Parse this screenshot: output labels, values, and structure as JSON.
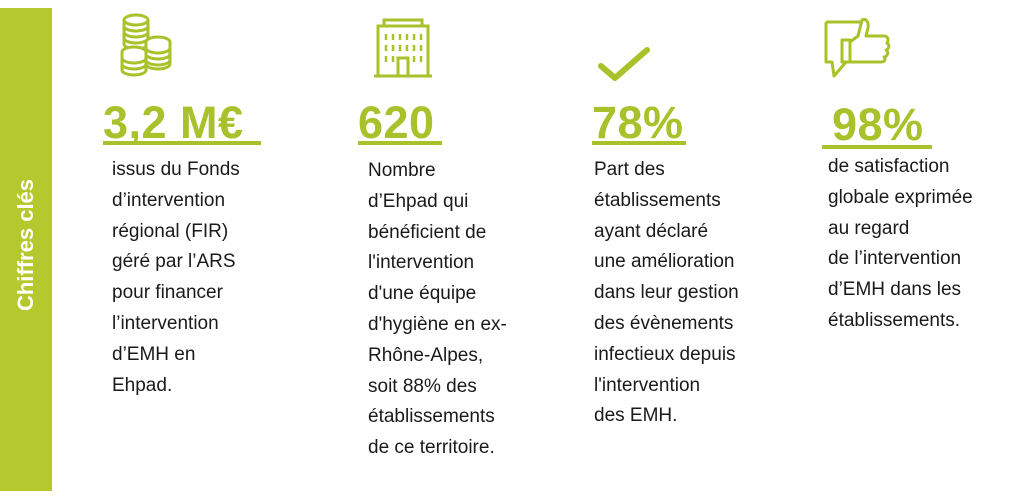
{
  "side_label": "Chiffres clés",
  "colors": {
    "accent": "#b5c92f",
    "figure": "#a9c12a",
    "text": "#1a1a1a"
  },
  "stats": [
    {
      "icon": "coins-icon",
      "value": "3,2 M€",
      "lines": [
        "issus du Fonds",
        "d’intervention",
        "régional (FIR)",
        "géré par l’ARS",
        "pour financer",
        "l’intervention",
        "d’EMH en",
        "Ehpad."
      ]
    },
    {
      "icon": "building-icon",
      "value": "620",
      "lines": [
        "Nombre",
        "d’Ehpad qui",
        "bénéficient de",
        "l'intervention",
        "d'une équipe",
        "d'hygiène en ex-",
        "Rhône-Alpes,",
        "soit 88% des",
        "établissements",
        "de ce territoire."
      ]
    },
    {
      "icon": "checkmark-icon",
      "value": "78%",
      "lines": [
        "Part des",
        "établissements",
        "ayant déclaré",
        "une amélioration",
        "dans leur gestion",
        "des évènements",
        "infectieux depuis",
        "l'intervention",
        "des EMH."
      ]
    },
    {
      "icon": "thumbs-up-speech-icon",
      "value": "98%",
      "lines": [
        "de satisfaction",
        "globale exprimée",
        "au regard",
        "de l’intervention",
        "d’EMH dans les",
        "établissements."
      ]
    }
  ]
}
